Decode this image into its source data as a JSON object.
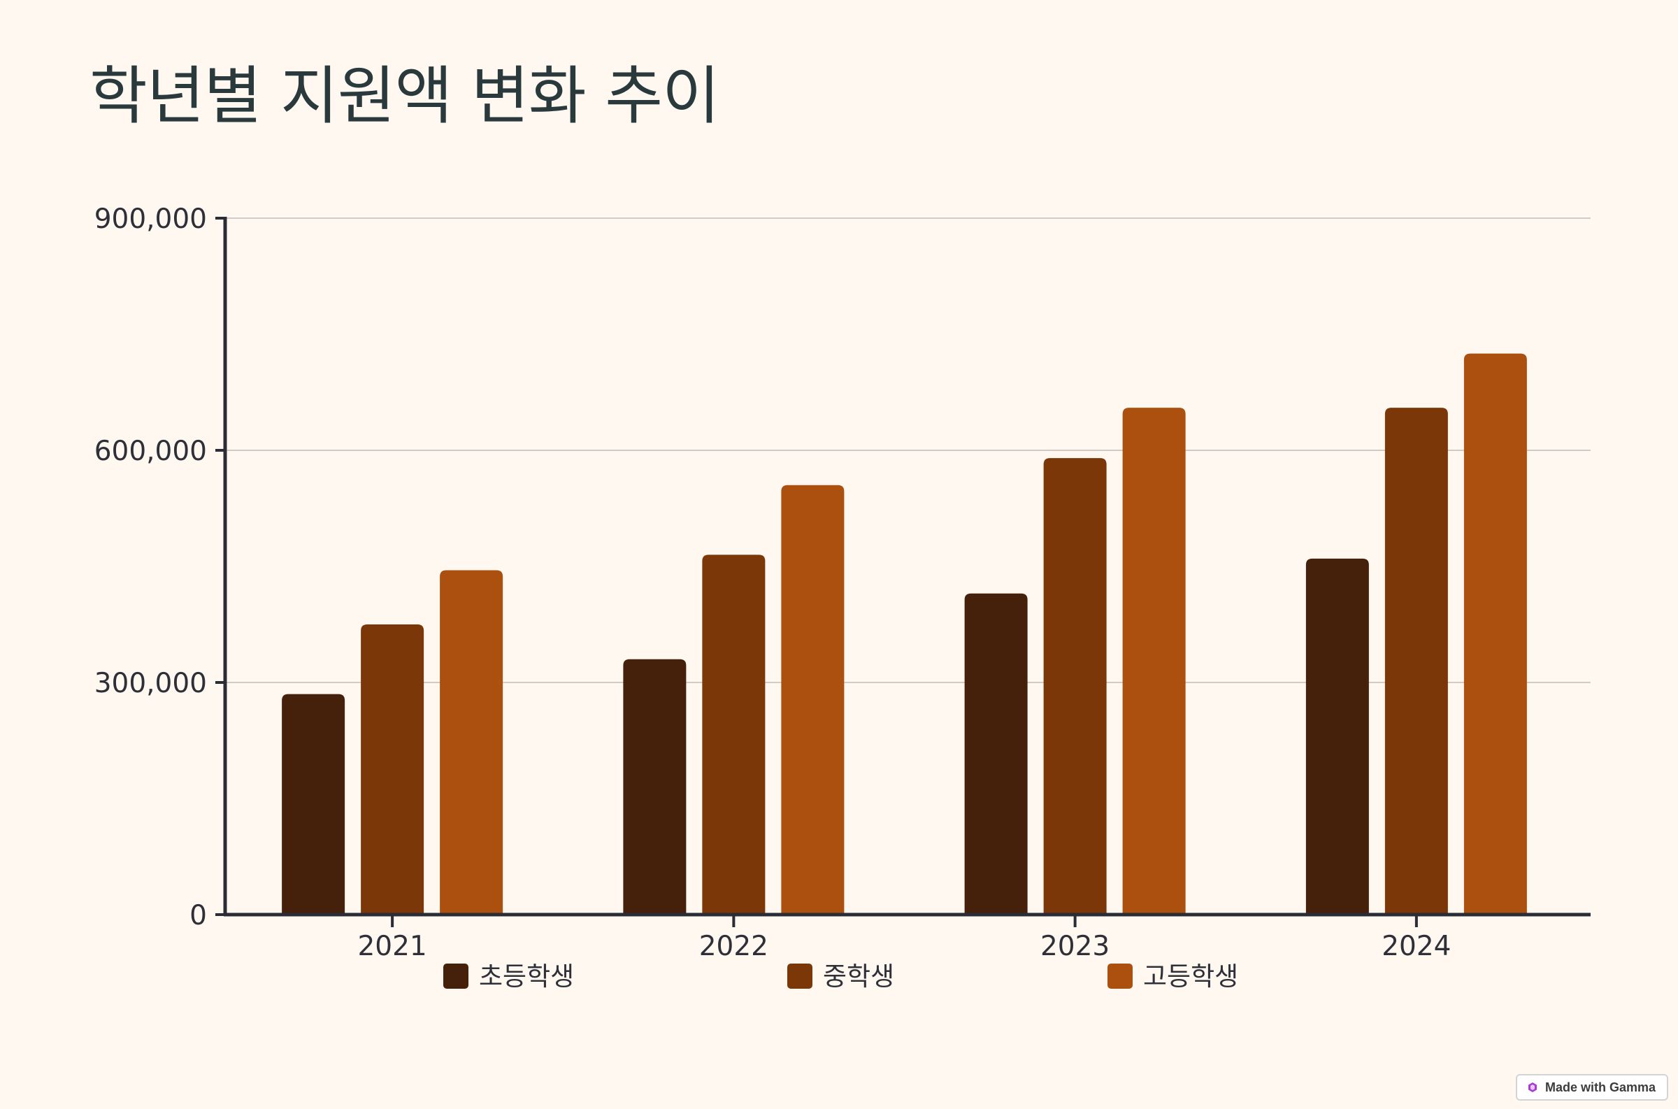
{
  "title": "학년별 지원액 변화 추이",
  "badge": {
    "label": "Made with Gamma",
    "icon": "gamma-logo-icon"
  },
  "chart_data": {
    "type": "bar",
    "categories": [
      "2021",
      "2022",
      "2023",
      "2024"
    ],
    "series": [
      {
        "name": "초등학생",
        "color": "#45200a",
        "values": [
          285000,
          330000,
          415000,
          460000
        ]
      },
      {
        "name": "중학생",
        "color": "#7c3709",
        "values": [
          375000,
          465000,
          590000,
          655000
        ]
      },
      {
        "name": "고등학생",
        "color": "#ab500e",
        "values": [
          445000,
          555000,
          655000,
          725000
        ]
      }
    ],
    "yticks": [
      0,
      300000,
      600000,
      900000
    ],
    "ytick_labels": [
      "0",
      "300,000",
      "600,000",
      "900,000"
    ],
    "ylim": [
      0,
      900000
    ],
    "grid": true,
    "legend": "bottom"
  }
}
